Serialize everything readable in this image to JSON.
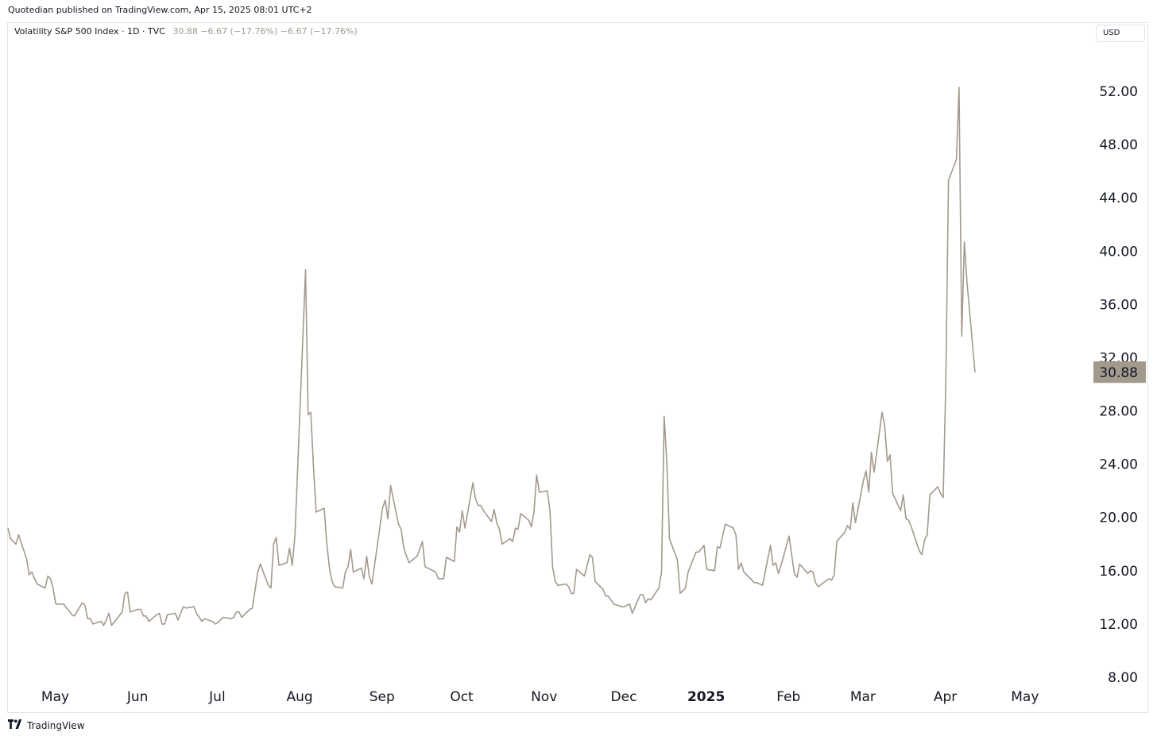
{
  "header": {
    "published_text": "Quotedian published on TradingView.com, Apr 15, 2025 08:01 UTC+2"
  },
  "legend": {
    "symbol": "Volatility S&P 500 Index · 1D · TVC",
    "values": "30.88  −6.67 (−17.76%)  −6.67 (−17.76%)"
  },
  "currency": "USD",
  "footer": {
    "brand": "TradingView",
    "logo_icon": "tradingview-logo-icon"
  },
  "colors": {
    "line": "#a39a8e",
    "price_badge": "#a39a8e",
    "axis_text": "#131722"
  },
  "chart_data": {
    "type": "line",
    "title": "Volatility S&P 500 Index",
    "xlabel": "",
    "ylabel": "",
    "ylim": [
      8,
      53
    ],
    "y_ticks": [
      "52.00",
      "48.00",
      "44.00",
      "40.00",
      "36.00",
      "32.00",
      "28.00",
      "24.00",
      "20.00",
      "16.00",
      "12.00",
      "8.00"
    ],
    "x_ticks": [
      {
        "label": "May",
        "date": "2024-05-01"
      },
      {
        "label": "Jun",
        "date": "2024-06-01"
      },
      {
        "label": "Jul",
        "date": "2024-07-01"
      },
      {
        "label": "Aug",
        "date": "2024-08-01"
      },
      {
        "label": "Sep",
        "date": "2024-09-01"
      },
      {
        "label": "Oct",
        "date": "2024-10-01"
      },
      {
        "label": "Nov",
        "date": "2024-11-01"
      },
      {
        "label": "Dec",
        "date": "2024-12-01"
      },
      {
        "label": "2025",
        "date": "2025-01-01",
        "bold": true
      },
      {
        "label": "Feb",
        "date": "2025-02-01"
      },
      {
        "label": "Mar",
        "date": "2025-03-01"
      },
      {
        "label": "Apr",
        "date": "2025-04-01"
      },
      {
        "label": "May",
        "date": "2025-05-01"
      }
    ],
    "last_value": "30.88",
    "grid": false,
    "series": [
      {
        "points": [
          [
            "2024-04-15",
            19.2
          ],
          [
            "2024-04-16",
            18.4
          ],
          [
            "2024-04-17",
            18.2
          ],
          [
            "2024-04-18",
            18.0
          ],
          [
            "2024-04-19",
            18.7
          ],
          [
            "2024-04-22",
            16.9
          ],
          [
            "2024-04-23",
            15.7
          ],
          [
            "2024-04-24",
            15.9
          ],
          [
            "2024-04-25",
            15.4
          ],
          [
            "2024-04-26",
            15.0
          ],
          [
            "2024-04-29",
            14.7
          ],
          [
            "2024-04-30",
            15.6
          ],
          [
            "2024-05-01",
            15.4
          ],
          [
            "2024-05-02",
            14.7
          ],
          [
            "2024-05-03",
            13.5
          ],
          [
            "2024-05-06",
            13.5
          ],
          [
            "2024-05-07",
            13.2
          ],
          [
            "2024-05-08",
            13.0
          ],
          [
            "2024-05-09",
            12.7
          ],
          [
            "2024-05-10",
            12.6
          ],
          [
            "2024-05-13",
            13.6
          ],
          [
            "2024-05-14",
            13.4
          ],
          [
            "2024-05-15",
            12.4
          ],
          [
            "2024-05-16",
            12.4
          ],
          [
            "2024-05-17",
            12.0
          ],
          [
            "2024-05-20",
            12.2
          ],
          [
            "2024-05-21",
            11.9
          ],
          [
            "2024-05-22",
            12.3
          ],
          [
            "2024-05-23",
            12.8
          ],
          [
            "2024-05-24",
            11.9
          ],
          [
            "2024-05-28",
            12.9
          ],
          [
            "2024-05-29",
            14.3
          ],
          [
            "2024-05-30",
            14.4
          ],
          [
            "2024-05-31",
            12.9
          ],
          [
            "2024-06-03",
            13.1
          ],
          [
            "2024-06-04",
            13.1
          ],
          [
            "2024-06-05",
            12.6
          ],
          [
            "2024-06-06",
            12.6
          ],
          [
            "2024-06-07",
            12.2
          ],
          [
            "2024-06-10",
            12.7
          ],
          [
            "2024-06-11",
            12.8
          ],
          [
            "2024-06-12",
            12.0
          ],
          [
            "2024-06-13",
            12.0
          ],
          [
            "2024-06-14",
            12.7
          ],
          [
            "2024-06-17",
            12.8
          ],
          [
            "2024-06-18",
            12.3
          ],
          [
            "2024-06-20",
            13.3
          ],
          [
            "2024-06-21",
            13.2
          ],
          [
            "2024-06-24",
            13.3
          ],
          [
            "2024-06-25",
            12.8
          ],
          [
            "2024-06-26",
            12.5
          ],
          [
            "2024-06-27",
            12.2
          ],
          [
            "2024-06-28",
            12.4
          ],
          [
            "2024-07-01",
            12.2
          ],
          [
            "2024-07-02",
            12.0
          ],
          [
            "2024-07-03",
            12.1
          ],
          [
            "2024-07-05",
            12.5
          ],
          [
            "2024-07-08",
            12.4
          ],
          [
            "2024-07-09",
            12.5
          ],
          [
            "2024-07-10",
            12.9
          ],
          [
            "2024-07-11",
            12.9
          ],
          [
            "2024-07-12",
            12.5
          ],
          [
            "2024-07-15",
            13.1
          ],
          [
            "2024-07-16",
            13.2
          ],
          [
            "2024-07-17",
            14.5
          ],
          [
            "2024-07-18",
            15.9
          ],
          [
            "2024-07-19",
            16.5
          ],
          [
            "2024-07-22",
            14.9
          ],
          [
            "2024-07-23",
            14.7
          ],
          [
            "2024-07-24",
            18.0
          ],
          [
            "2024-07-25",
            18.5
          ],
          [
            "2024-07-26",
            16.4
          ],
          [
            "2024-07-29",
            16.6
          ],
          [
            "2024-07-30",
            17.7
          ],
          [
            "2024-07-31",
            16.4
          ],
          [
            "2024-08-01",
            18.6
          ],
          [
            "2024-08-02",
            23.4
          ],
          [
            "2024-08-05",
            38.6
          ],
          [
            "2024-08-06",
            27.7
          ],
          [
            "2024-08-07",
            27.9
          ],
          [
            "2024-08-08",
            23.8
          ],
          [
            "2024-08-09",
            20.4
          ],
          [
            "2024-08-12",
            20.7
          ],
          [
            "2024-08-13",
            18.1
          ],
          [
            "2024-08-14",
            16.2
          ],
          [
            "2024-08-15",
            15.2
          ],
          [
            "2024-08-16",
            14.8
          ],
          [
            "2024-08-19",
            14.7
          ],
          [
            "2024-08-20",
            15.9
          ],
          [
            "2024-08-21",
            16.3
          ],
          [
            "2024-08-22",
            17.6
          ],
          [
            "2024-08-23",
            15.9
          ],
          [
            "2024-08-26",
            16.2
          ],
          [
            "2024-08-27",
            15.4
          ],
          [
            "2024-08-28",
            17.1
          ],
          [
            "2024-08-29",
            15.6
          ],
          [
            "2024-08-30",
            15.0
          ],
          [
            "2024-09-03",
            20.7
          ],
          [
            "2024-09-04",
            21.3
          ],
          [
            "2024-09-05",
            19.9
          ],
          [
            "2024-09-06",
            22.4
          ],
          [
            "2024-09-09",
            19.5
          ],
          [
            "2024-09-10",
            19.1
          ],
          [
            "2024-09-11",
            17.7
          ],
          [
            "2024-09-12",
            17.1
          ],
          [
            "2024-09-13",
            16.6
          ],
          [
            "2024-09-16",
            17.1
          ],
          [
            "2024-09-17",
            17.6
          ],
          [
            "2024-09-18",
            18.2
          ],
          [
            "2024-09-19",
            16.3
          ],
          [
            "2024-09-20",
            16.2
          ],
          [
            "2024-09-23",
            15.9
          ],
          [
            "2024-09-24",
            15.4
          ],
          [
            "2024-09-25",
            15.4
          ],
          [
            "2024-09-26",
            15.4
          ],
          [
            "2024-09-27",
            17.0
          ],
          [
            "2024-09-30",
            16.7
          ],
          [
            "2024-10-01",
            19.3
          ],
          [
            "2024-10-02",
            18.9
          ],
          [
            "2024-10-03",
            20.5
          ],
          [
            "2024-10-04",
            19.2
          ],
          [
            "2024-10-07",
            22.6
          ],
          [
            "2024-10-08",
            21.4
          ],
          [
            "2024-10-09",
            20.9
          ],
          [
            "2024-10-10",
            20.9
          ],
          [
            "2024-10-11",
            20.5
          ],
          [
            "2024-10-14",
            19.7
          ],
          [
            "2024-10-15",
            20.6
          ],
          [
            "2024-10-16",
            19.6
          ],
          [
            "2024-10-17",
            19.1
          ],
          [
            "2024-10-18",
            18.0
          ],
          [
            "2024-10-21",
            18.4
          ],
          [
            "2024-10-22",
            18.2
          ],
          [
            "2024-10-23",
            19.2
          ],
          [
            "2024-10-24",
            19.1
          ],
          [
            "2024-10-25",
            20.3
          ],
          [
            "2024-10-28",
            19.8
          ],
          [
            "2024-10-29",
            19.3
          ],
          [
            "2024-10-30",
            20.4
          ],
          [
            "2024-10-31",
            23.2
          ],
          [
            "2024-11-01",
            21.9
          ],
          [
            "2024-11-04",
            22.0
          ],
          [
            "2024-11-05",
            20.5
          ],
          [
            "2024-11-06",
            16.3
          ],
          [
            "2024-11-07",
            15.2
          ],
          [
            "2024-11-08",
            14.9
          ],
          [
            "2024-11-11",
            15.0
          ],
          [
            "2024-11-12",
            14.8
          ],
          [
            "2024-11-13",
            14.3
          ],
          [
            "2024-11-14",
            14.3
          ],
          [
            "2024-11-15",
            16.1
          ],
          [
            "2024-11-18",
            15.6
          ],
          [
            "2024-11-19",
            16.4
          ],
          [
            "2024-11-20",
            17.2
          ],
          [
            "2024-11-21",
            17.0
          ],
          [
            "2024-11-22",
            15.2
          ],
          [
            "2024-11-25",
            14.6
          ],
          [
            "2024-11-26",
            14.1
          ],
          [
            "2024-11-27",
            14.1
          ],
          [
            "2024-11-29",
            13.5
          ],
          [
            "2024-12-02",
            13.3
          ],
          [
            "2024-12-03",
            13.3
          ],
          [
            "2024-12-04",
            13.4
          ],
          [
            "2024-12-05",
            13.5
          ],
          [
            "2024-12-06",
            12.8
          ],
          [
            "2024-12-09",
            14.2
          ],
          [
            "2024-12-10",
            14.2
          ],
          [
            "2024-12-11",
            13.6
          ],
          [
            "2024-12-12",
            13.9
          ],
          [
            "2024-12-13",
            13.8
          ],
          [
            "2024-12-16",
            14.7
          ],
          [
            "2024-12-17",
            15.9
          ],
          [
            "2024-12-18",
            27.6
          ],
          [
            "2024-12-19",
            24.1
          ],
          [
            "2024-12-20",
            18.4
          ],
          [
            "2024-12-23",
            16.8
          ],
          [
            "2024-12-24",
            14.3
          ],
          [
            "2024-12-26",
            14.7
          ],
          [
            "2024-12-27",
            15.9
          ],
          [
            "2024-12-30",
            17.4
          ],
          [
            "2024-12-31",
            17.4
          ],
          [
            "2025-01-02",
            17.9
          ],
          [
            "2025-01-03",
            16.1
          ],
          [
            "2025-01-06",
            16.0
          ],
          [
            "2025-01-07",
            17.8
          ],
          [
            "2025-01-08",
            17.7
          ],
          [
            "2025-01-10",
            19.5
          ],
          [
            "2025-01-13",
            19.2
          ],
          [
            "2025-01-14",
            18.7
          ],
          [
            "2025-01-15",
            16.1
          ],
          [
            "2025-01-16",
            16.6
          ],
          [
            "2025-01-17",
            15.9
          ],
          [
            "2025-01-21",
            15.1
          ],
          [
            "2025-01-22",
            15.1
          ],
          [
            "2025-01-23",
            15.0
          ],
          [
            "2025-01-24",
            14.9
          ],
          [
            "2025-01-27",
            17.9
          ],
          [
            "2025-01-28",
            16.4
          ],
          [
            "2025-01-29",
            16.6
          ],
          [
            "2025-01-30",
            15.8
          ],
          [
            "2025-01-31",
            16.4
          ],
          [
            "2025-02-03",
            18.6
          ],
          [
            "2025-02-04",
            17.2
          ],
          [
            "2025-02-05",
            15.8
          ],
          [
            "2025-02-06",
            15.5
          ],
          [
            "2025-02-07",
            16.5
          ],
          [
            "2025-02-10",
            15.8
          ],
          [
            "2025-02-11",
            16.0
          ],
          [
            "2025-02-12",
            15.9
          ],
          [
            "2025-02-13",
            15.1
          ],
          [
            "2025-02-14",
            14.8
          ],
          [
            "2025-02-18",
            15.4
          ],
          [
            "2025-02-19",
            15.3
          ],
          [
            "2025-02-20",
            15.7
          ],
          [
            "2025-02-21",
            18.2
          ],
          [
            "2025-02-24",
            18.9
          ],
          [
            "2025-02-25",
            19.4
          ],
          [
            "2025-02-26",
            19.1
          ],
          [
            "2025-02-27",
            21.1
          ],
          [
            "2025-02-28",
            19.6
          ],
          [
            "2025-03-03",
            22.8
          ],
          [
            "2025-03-04",
            23.5
          ],
          [
            "2025-03-05",
            21.9
          ],
          [
            "2025-03-06",
            24.9
          ],
          [
            "2025-03-07",
            23.4
          ],
          [
            "2025-03-10",
            27.9
          ],
          [
            "2025-03-11",
            26.9
          ],
          [
            "2025-03-12",
            24.2
          ],
          [
            "2025-03-13",
            24.7
          ],
          [
            "2025-03-14",
            21.8
          ],
          [
            "2025-03-17",
            20.5
          ],
          [
            "2025-03-18",
            21.7
          ],
          [
            "2025-03-19",
            19.9
          ],
          [
            "2025-03-20",
            19.8
          ],
          [
            "2025-03-21",
            19.3
          ],
          [
            "2025-03-24",
            17.5
          ],
          [
            "2025-03-25",
            17.2
          ],
          [
            "2025-03-26",
            18.3
          ],
          [
            "2025-03-27",
            18.7
          ],
          [
            "2025-03-28",
            21.7
          ],
          [
            "2025-03-31",
            22.3
          ],
          [
            "2025-04-01",
            21.8
          ],
          [
            "2025-04-02",
            21.5
          ],
          [
            "2025-04-03",
            30.0
          ],
          [
            "2025-04-04",
            45.3
          ],
          [
            "2025-04-07",
            46.9
          ],
          [
            "2025-04-08",
            52.3
          ],
          [
            "2025-04-09",
            33.6
          ],
          [
            "2025-04-10",
            40.7
          ],
          [
            "2025-04-11",
            37.6
          ],
          [
            "2025-04-14",
            30.9
          ]
        ]
      }
    ]
  }
}
